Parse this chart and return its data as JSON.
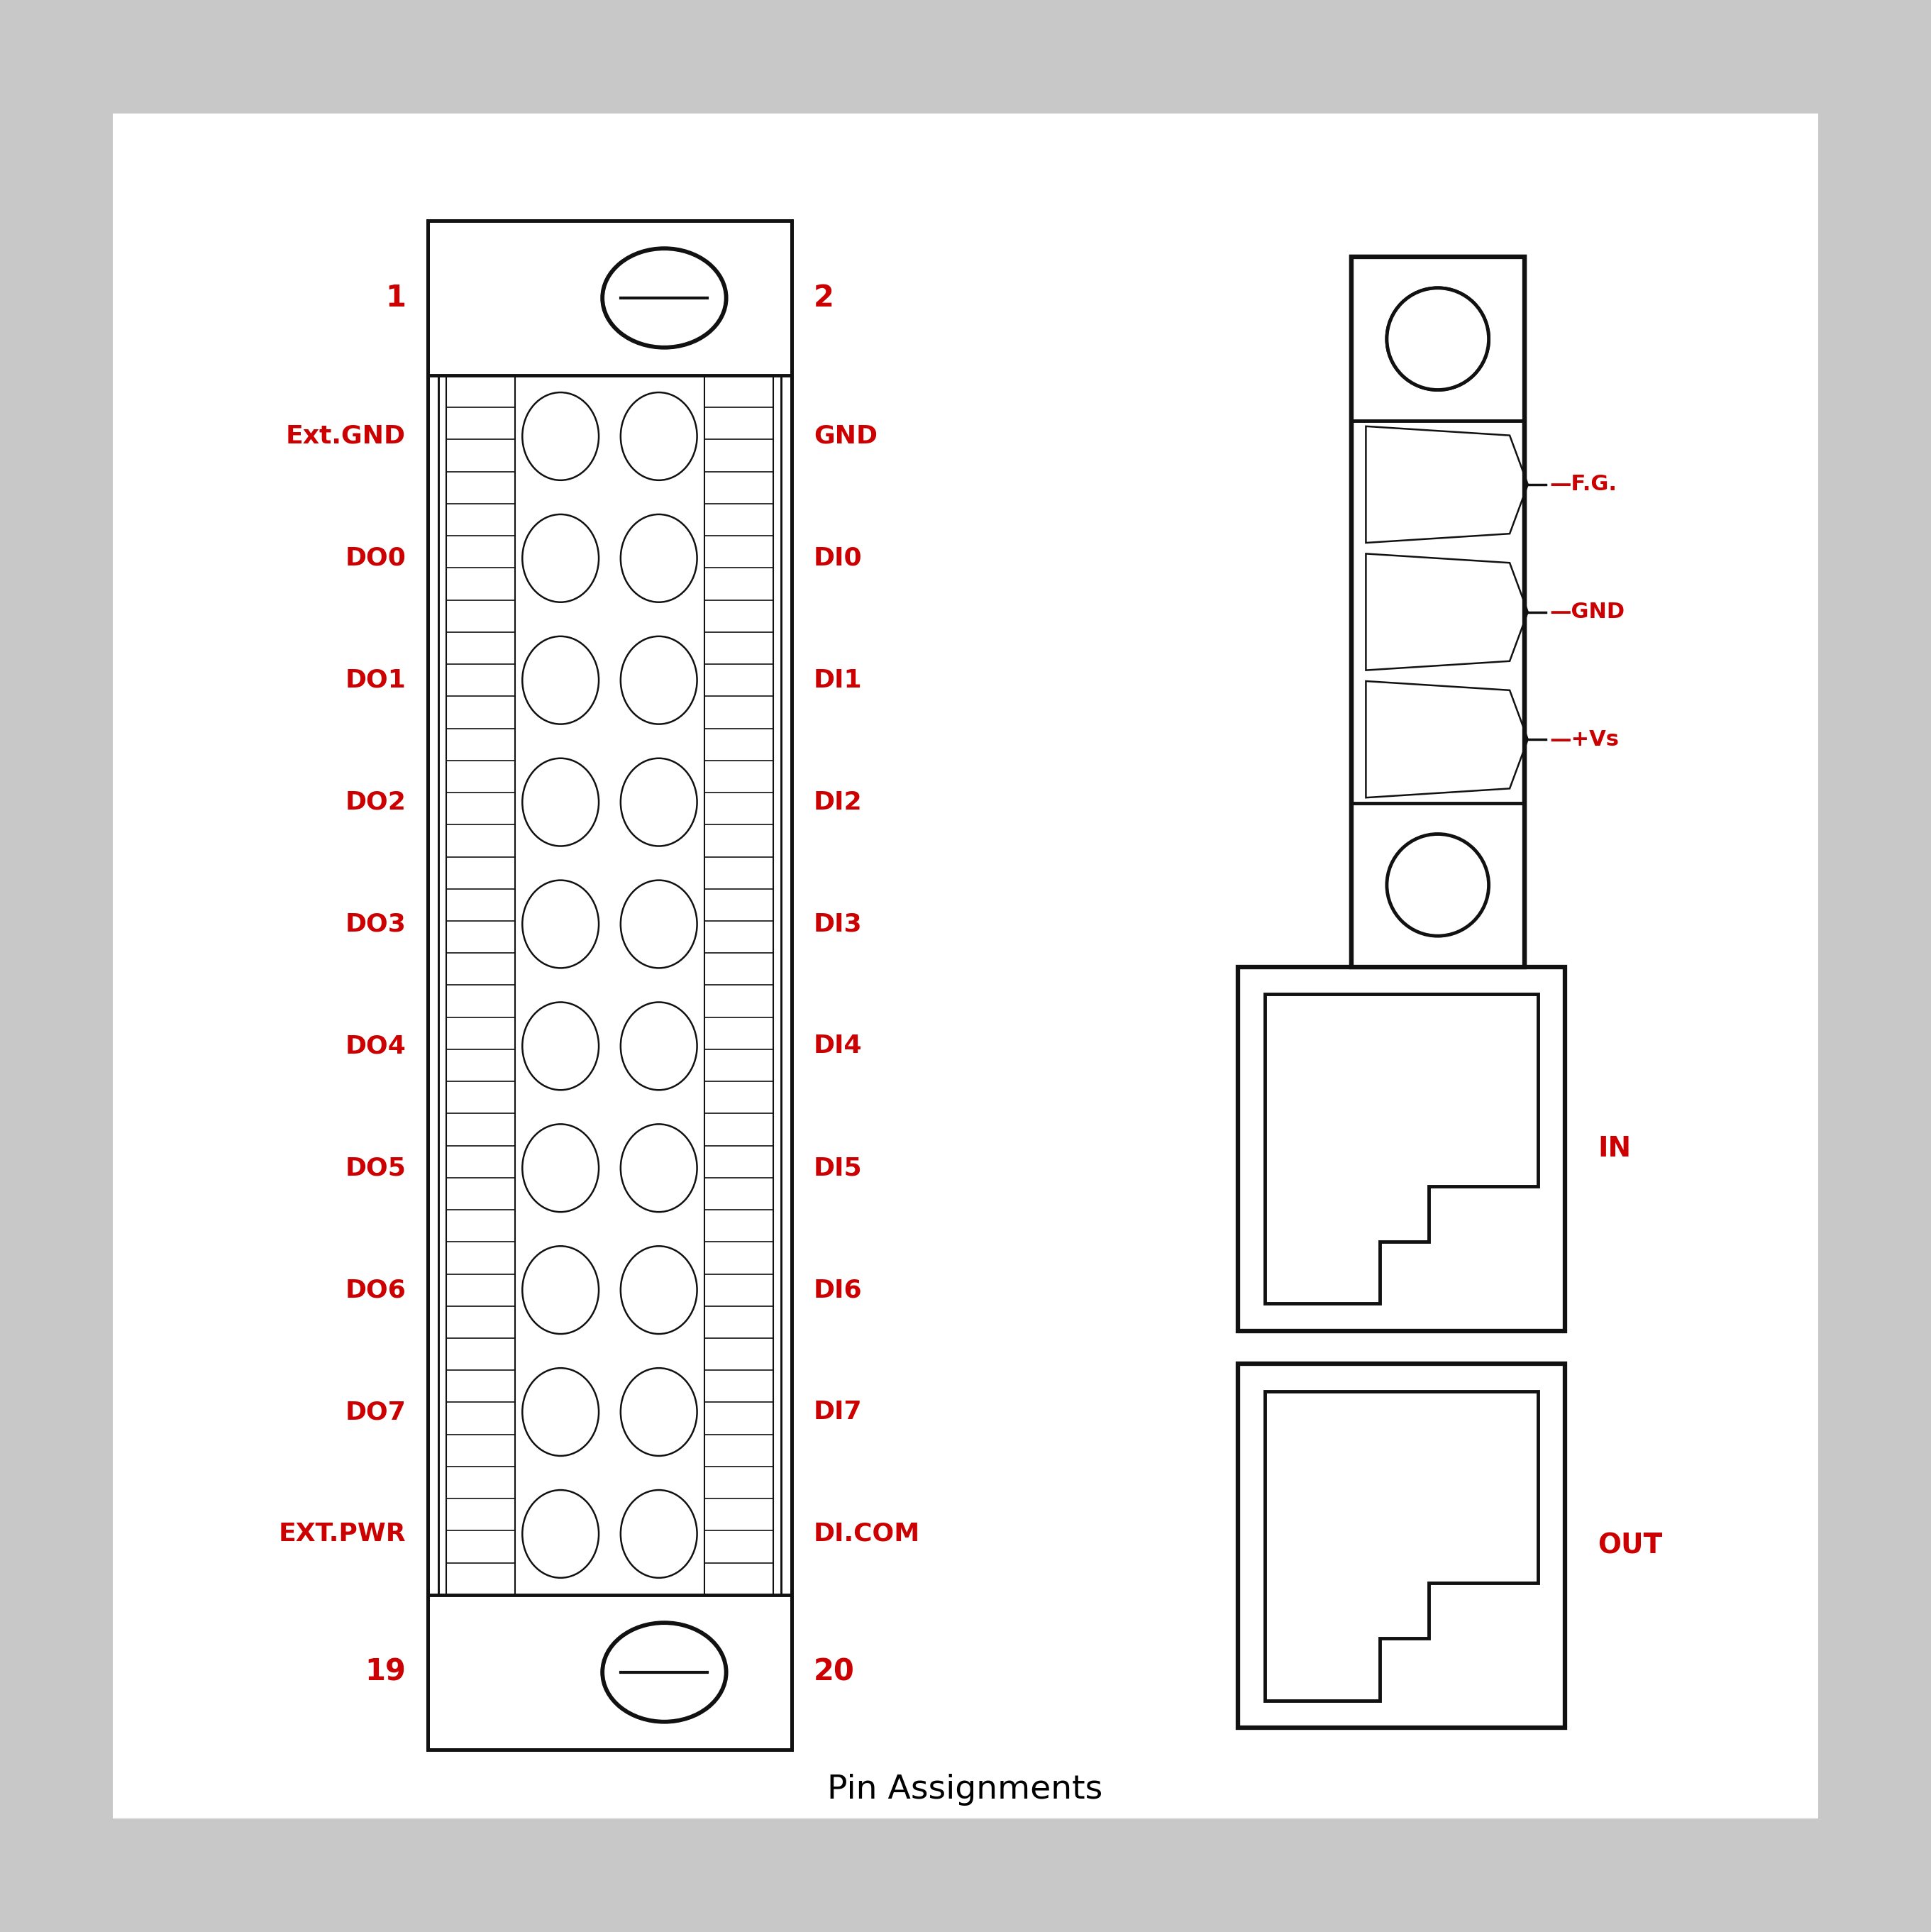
{
  "title": "Pin Assignments",
  "bg_color": "#c8c8c8",
  "white_bg": "#ffffff",
  "line_color": "#111111",
  "red_color": "#cc0000",
  "left_labels": [
    "Ext.GND",
    "DO0",
    "DO1",
    "DO2",
    "DO3",
    "DO4",
    "DO5",
    "DO6",
    "DO7",
    "EXT.PWR"
  ],
  "right_labels": [
    "GND",
    "DI0",
    "DI1",
    "DI2",
    "DI3",
    "DI4",
    "DI5",
    "DI6",
    "DI7",
    "DI.COM"
  ],
  "pin_left_top": "1",
  "pin_left_bot": "19",
  "pin_right_top": "2",
  "pin_right_bot": "20",
  "power_labels": [
    "F.G.",
    "GND",
    "+Vs"
  ],
  "rj45_labels": [
    "IN",
    "OUT"
  ],
  "num_rows": 10,
  "lw": 3.5,
  "title_fontsize": 34,
  "label_fontsize": 26,
  "num_fontsize": 30
}
